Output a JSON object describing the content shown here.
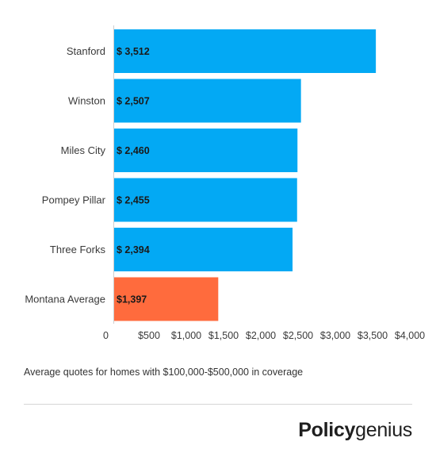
{
  "chart_data": {
    "type": "bar",
    "orientation": "horizontal",
    "categories": [
      "Stanford",
      "Winston",
      "Miles City",
      "Pompey Pillar",
      "Three Forks",
      "Montana Average"
    ],
    "values": [
      3512,
      2507,
      2460,
      2455,
      2394,
      1397
    ],
    "data_labels": [
      "$ 3,512",
      "$ 2,507",
      "$ 2,460",
      "$ 2,455",
      "$ 2,394",
      "$1,397"
    ],
    "bar_colors": [
      "#03a9f4",
      "#03a9f4",
      "#03a9f4",
      "#03a9f4",
      "#03a9f4",
      "#ff6b3d"
    ],
    "xlim": [
      0,
      4000
    ],
    "x_ticks": [
      0,
      500,
      1000,
      1500,
      2000,
      2500,
      3000,
      3500,
      4000
    ],
    "x_tick_labels": [
      "0",
      "$500",
      "$1,000",
      "$1,500",
      "$2,000",
      "$2,500",
      "$3,000",
      "$3,500",
      "$4,000"
    ],
    "grid": false,
    "legend": "none"
  },
  "caption": "Average quotes for homes with $100,000-$500,000 in coverage",
  "logo": {
    "bold": "Policy",
    "light": "genius"
  }
}
